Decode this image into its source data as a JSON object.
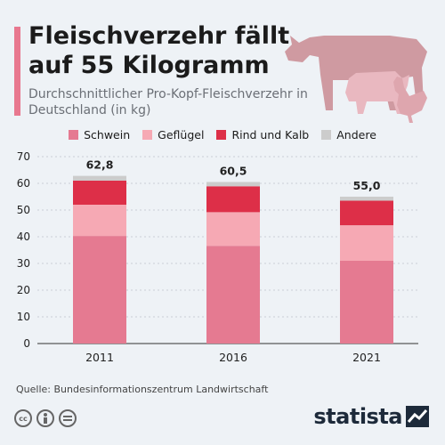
{
  "header": {
    "title": "Fleischverzehr fällt auf 55 Kilogramm",
    "subtitle": "Durchschnittlicher Pro-Kopf-Fleischverzehr in Deutschland (in kg)"
  },
  "legend": [
    {
      "label": "Schwein",
      "color": "#e57a91"
    },
    {
      "label": "Geflügel",
      "color": "#f6a9b4"
    },
    {
      "label": "Rind und Kalb",
      "color": "#dd2f48"
    },
    {
      "label": "Andere",
      "color": "#cccccc"
    }
  ],
  "chart_data": {
    "type": "bar",
    "stacked": true,
    "categories": [
      "2011",
      "2016",
      "2021"
    ],
    "series": [
      {
        "name": "Schwein",
        "color": "#e57a91",
        "values": [
          40.3,
          36.6,
          31.0
        ]
      },
      {
        "name": "Geflügel",
        "color": "#f6a9b4",
        "values": [
          11.7,
          12.6,
          13.3
        ]
      },
      {
        "name": "Rind und Kalb",
        "color": "#dd2f48",
        "values": [
          9.0,
          9.7,
          9.2
        ]
      },
      {
        "name": "Andere",
        "color": "#cccccc",
        "values": [
          1.8,
          1.6,
          1.5
        ]
      }
    ],
    "totals": [
      "62,8",
      "60,5",
      "55,0"
    ],
    "ylim": [
      0,
      70
    ],
    "yticks": [
      0,
      10,
      20,
      30,
      40,
      50,
      60,
      70
    ],
    "grid": true,
    "legend_position": "top"
  },
  "footer": {
    "source": "Quelle: Bundesinformationszentrum Landwirtschaft",
    "brand": "statista",
    "license_icons": [
      "cc-icon",
      "by-icon",
      "nd-icon"
    ]
  }
}
